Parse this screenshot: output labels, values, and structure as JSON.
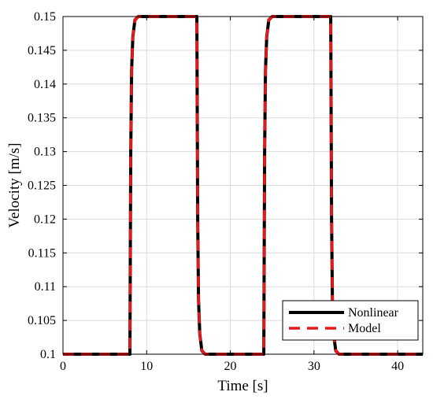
{
  "chart_data": {
    "type": "line",
    "xlabel": "Time [s]",
    "ylabel": "Velocity [m/s]",
    "xlim": [
      0,
      43
    ],
    "ylim": [
      0.1,
      0.15
    ],
    "xticks": [
      0,
      10,
      20,
      30,
      40
    ],
    "yticks": [
      0.1,
      0.105,
      0.11,
      0.115,
      0.12,
      0.125,
      0.13,
      0.135,
      0.14,
      0.145,
      0.15
    ],
    "xtick_labels": [
      "0",
      "10",
      "20",
      "30",
      "40"
    ],
    "ytick_labels": [
      "0.1",
      "0.105",
      "0.11",
      "0.115",
      "0.12",
      "0.125",
      "0.13",
      "0.135",
      "0.14",
      "0.145",
      "0.15"
    ],
    "grid": true,
    "legend": {
      "position": "bottom-right"
    },
    "series": [
      {
        "name": "Nonlinear",
        "color": "#000000",
        "style": "solid",
        "x": [
          0,
          8.0,
          8.1,
          8.2,
          8.35,
          8.6,
          9.0,
          16.0,
          16.1,
          16.2,
          16.35,
          16.6,
          17.0,
          24.0,
          24.1,
          24.2,
          24.35,
          24.6,
          25.0,
          32.0,
          32.1,
          32.2,
          32.35,
          32.6,
          33.0,
          43.0
        ],
        "y": [
          0.1,
          0.1,
          0.13,
          0.142,
          0.147,
          0.1495,
          0.15,
          0.15,
          0.12,
          0.108,
          0.103,
          0.1005,
          0.1,
          0.1,
          0.13,
          0.142,
          0.147,
          0.1495,
          0.15,
          0.15,
          0.12,
          0.108,
          0.103,
          0.1005,
          0.1,
          0.1
        ]
      },
      {
        "name": "Model",
        "color": "#e31a1c",
        "style": "dashed",
        "x": [
          0,
          8.0,
          8.1,
          8.2,
          8.35,
          8.6,
          9.0,
          16.0,
          16.1,
          16.2,
          16.35,
          16.6,
          17.0,
          24.0,
          24.1,
          24.2,
          24.35,
          24.6,
          25.0,
          32.0,
          32.1,
          32.2,
          32.35,
          32.6,
          33.0,
          43.0
        ],
        "y": [
          0.1,
          0.1,
          0.13,
          0.142,
          0.147,
          0.1495,
          0.15,
          0.15,
          0.12,
          0.108,
          0.103,
          0.1005,
          0.1,
          0.1,
          0.13,
          0.142,
          0.147,
          0.1495,
          0.15,
          0.15,
          0.12,
          0.108,
          0.103,
          0.1005,
          0.1,
          0.1
        ]
      }
    ]
  }
}
